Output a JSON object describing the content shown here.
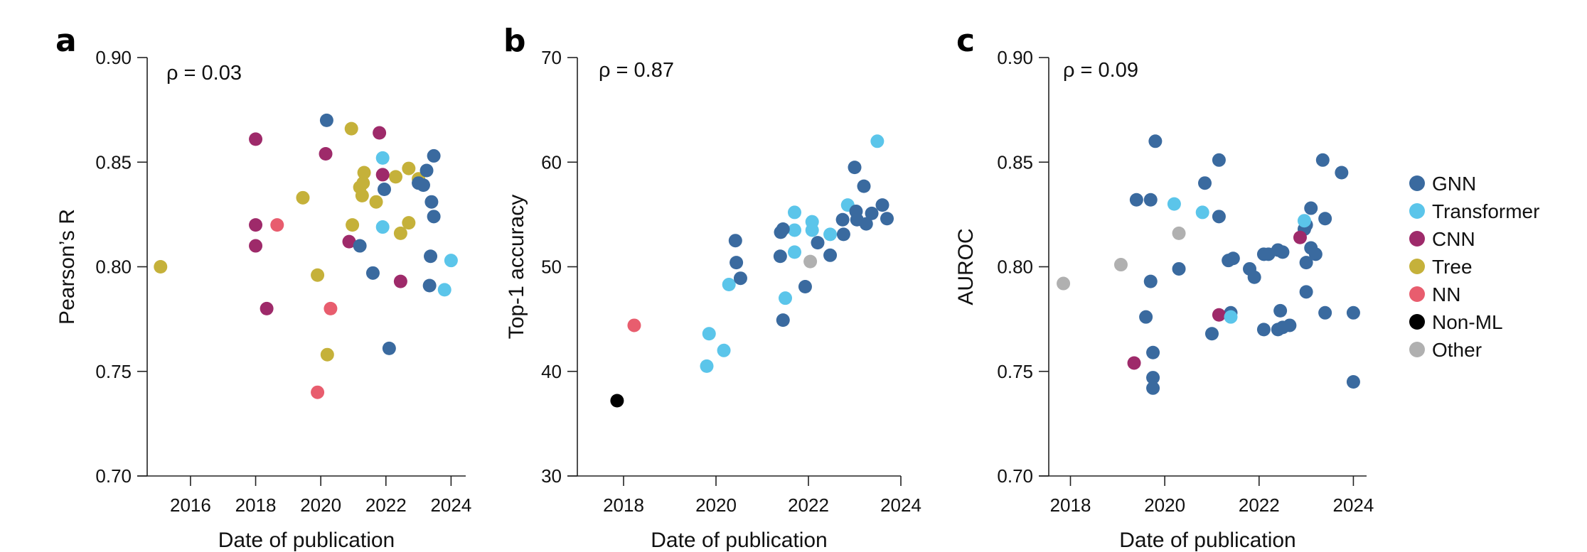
{
  "legend": {
    "items": [
      {
        "label": "GNN",
        "color": "#3a6a9f"
      },
      {
        "label": "Transformer",
        "color": "#5bc5ea"
      },
      {
        "label": "CNN",
        "color": "#9e2a6a"
      },
      {
        "label": "Tree",
        "color": "#c5b13a"
      },
      {
        "label": "NN",
        "color": "#e85d6e"
      },
      {
        "label": "Non-ML",
        "color": "#000000"
      },
      {
        "label": "Other",
        "color": "#b0b0b0"
      }
    ]
  },
  "chart_data": [
    {
      "panel": "a",
      "type": "scatter",
      "title": "",
      "annotation": "ρ = 0.03",
      "xlabel": "Date of publication",
      "ylabel": "Pearson’s R",
      "xlim": [
        2014.67,
        2024.45
      ],
      "ylim": [
        0.7,
        0.9
      ],
      "xticks": [
        2016,
        2018,
        2020,
        2022,
        2024
      ],
      "yticks": [
        "0.70",
        "0.75",
        "0.80",
        "0.85",
        "0.90"
      ],
      "grid": false,
      "series": [
        {
          "name": "Tree",
          "points": [
            [
              2015.08,
              0.8
            ],
            [
              2019.45,
              0.833
            ],
            [
              2019.9,
              0.796
            ],
            [
              2020.2,
              0.758
            ],
            [
              2020.94,
              0.866
            ],
            [
              2020.97,
              0.82
            ],
            [
              2021.2,
              0.838
            ],
            [
              2021.3,
              0.84
            ],
            [
              2021.33,
              0.845
            ],
            [
              2021.27,
              0.834
            ],
            [
              2021.7,
              0.831
            ],
            [
              2022.3,
              0.843
            ],
            [
              2022.45,
              0.816
            ],
            [
              2022.7,
              0.847
            ],
            [
              2022.7,
              0.821
            ],
            [
              2023.0,
              0.842
            ]
          ]
        },
        {
          "name": "CNN",
          "points": [
            [
              2018.0,
              0.861
            ],
            [
              2018.0,
              0.82
            ],
            [
              2018.0,
              0.81
            ],
            [
              2018.34,
              0.78
            ],
            [
              2020.15,
              0.854
            ],
            [
              2020.87,
              0.812
            ],
            [
              2021.8,
              0.864
            ],
            [
              2021.9,
              0.844
            ],
            [
              2022.45,
              0.793
            ]
          ]
        },
        {
          "name": "NN",
          "points": [
            [
              2018.66,
              0.82
            ],
            [
              2019.9,
              0.74
            ],
            [
              2020.3,
              0.78
            ]
          ]
        },
        {
          "name": "GNN",
          "points": [
            [
              2020.18,
              0.87
            ],
            [
              2021.2,
              0.81
            ],
            [
              2021.6,
              0.797
            ],
            [
              2021.95,
              0.837
            ],
            [
              2022.1,
              0.761
            ],
            [
              2023.0,
              0.84
            ],
            [
              2023.15,
              0.839
            ],
            [
              2023.25,
              0.846
            ],
            [
              2023.47,
              0.853
            ],
            [
              2023.4,
              0.831
            ],
            [
              2023.47,
              0.824
            ],
            [
              2023.37,
              0.805
            ],
            [
              2023.34,
              0.791
            ]
          ]
        },
        {
          "name": "Transformer",
          "points": [
            [
              2021.9,
              0.852
            ],
            [
              2021.9,
              0.819
            ],
            [
              2024.0,
              0.803
            ],
            [
              2023.8,
              0.789
            ]
          ]
        }
      ]
    },
    {
      "panel": "b",
      "type": "scatter",
      "title": "",
      "annotation": "ρ = 0.87",
      "xlabel": "Date of publication",
      "ylabel": "Top-1 accuracy",
      "xlim": [
        2017.0,
        2024.0
      ],
      "ylim": [
        30,
        70
      ],
      "xticks": [
        2018,
        2020,
        2022,
        2024
      ],
      "yticks": [
        "30",
        "40",
        "50",
        "60",
        "70"
      ],
      "grid": false,
      "series": [
        {
          "name": "Non-ML",
          "points": [
            [
              2017.86,
              37.2
            ]
          ]
        },
        {
          "name": "NN",
          "points": [
            [
              2018.23,
              44.4
            ]
          ]
        },
        {
          "name": "Transformer",
          "points": [
            [
              2019.8,
              40.5
            ],
            [
              2019.85,
              43.6
            ],
            [
              2020.17,
              42.0
            ],
            [
              2020.28,
              48.3
            ],
            [
              2021.5,
              47.0
            ],
            [
              2021.7,
              55.2
            ],
            [
              2021.7,
              53.5
            ],
            [
              2021.7,
              51.4
            ],
            [
              2022.08,
              54.3
            ],
            [
              2022.08,
              53.5
            ],
            [
              2022.47,
              53.1
            ],
            [
              2022.85,
              55.9
            ],
            [
              2023.49,
              62.0
            ]
          ]
        },
        {
          "name": "GNN",
          "points": [
            [
              2020.42,
              52.5
            ],
            [
              2020.44,
              50.4
            ],
            [
              2020.53,
              48.9
            ],
            [
              2021.39,
              51.0
            ],
            [
              2021.4,
              53.3
            ],
            [
              2021.45,
              53.6
            ],
            [
              2021.45,
              44.9
            ],
            [
              2021.93,
              48.1
            ],
            [
              2022.2,
              52.3
            ],
            [
              2022.47,
              51.1
            ],
            [
              2022.74,
              54.5
            ],
            [
              2022.76,
              53.1
            ],
            [
              2023.0,
              59.5
            ],
            [
              2023.03,
              55.3
            ],
            [
              2023.05,
              54.5
            ],
            [
              2023.2,
              57.7
            ],
            [
              2023.25,
              54.1
            ],
            [
              2023.37,
              55.1
            ],
            [
              2023.6,
              55.9
            ],
            [
              2023.7,
              54.6
            ]
          ]
        },
        {
          "name": "Other",
          "points": [
            [
              2022.04,
              50.5
            ]
          ]
        }
      ]
    },
    {
      "panel": "c",
      "type": "scatter",
      "title": "",
      "annotation": "ρ = 0.09",
      "xlabel": "Date of publication",
      "ylabel": "AUROC",
      "xlim": [
        2017.54,
        2024.28
      ],
      "ylim": [
        0.7,
        0.9
      ],
      "xticks": [
        2018,
        2020,
        2022,
        2024
      ],
      "yticks": [
        "0.70",
        "0.75",
        "0.80",
        "0.85",
        "0.90"
      ],
      "grid": false,
      "series": [
        {
          "name": "Other",
          "points": [
            [
              2017.85,
              0.792
            ],
            [
              2019.07,
              0.801
            ],
            [
              2020.3,
              0.816
            ]
          ]
        },
        {
          "name": "GNN",
          "points": [
            [
              2019.8,
              0.86
            ],
            [
              2019.4,
              0.832
            ],
            [
              2019.7,
              0.832
            ],
            [
              2020.85,
              0.84
            ],
            [
              2021.15,
              0.851
            ],
            [
              2021.15,
              0.824
            ],
            [
              2020.3,
              0.799
            ],
            [
              2019.7,
              0.793
            ],
            [
              2019.6,
              0.776
            ],
            [
              2019.75,
              0.759
            ],
            [
              2019.75,
              0.747
            ],
            [
              2019.75,
              0.742
            ],
            [
              2021.0,
              0.768
            ],
            [
              2021.4,
              0.778
            ],
            [
              2021.35,
              0.803
            ],
            [
              2021.45,
              0.804
            ],
            [
              2021.8,
              0.799
            ],
            [
              2021.9,
              0.795
            ],
            [
              2022.1,
              0.806
            ],
            [
              2022.2,
              0.806
            ],
            [
              2022.4,
              0.808
            ],
            [
              2022.5,
              0.807
            ],
            [
              2022.1,
              0.77
            ],
            [
              2022.4,
              0.77
            ],
            [
              2022.5,
              0.771
            ],
            [
              2022.65,
              0.772
            ],
            [
              2022.45,
              0.779
            ],
            [
              2023.0,
              0.82
            ],
            [
              2022.96,
              0.818
            ],
            [
              2023.1,
              0.828
            ],
            [
              2023.0,
              0.802
            ],
            [
              2023.1,
              0.809
            ],
            [
              2023.2,
              0.806
            ],
            [
              2023.0,
              0.788
            ],
            [
              2023.35,
              0.851
            ],
            [
              2023.4,
              0.823
            ],
            [
              2023.75,
              0.845
            ],
            [
              2023.4,
              0.778
            ],
            [
              2024.0,
              0.778
            ],
            [
              2024.0,
              0.745
            ]
          ]
        },
        {
          "name": "CNN",
          "points": [
            [
              2019.35,
              0.754
            ],
            [
              2021.15,
              0.777
            ],
            [
              2022.87,
              0.814
            ]
          ]
        },
        {
          "name": "Transformer",
          "points": [
            [
              2020.2,
              0.83
            ],
            [
              2020.8,
              0.826
            ],
            [
              2021.4,
              0.776
            ],
            [
              2022.96,
              0.822
            ]
          ]
        }
      ]
    }
  ]
}
